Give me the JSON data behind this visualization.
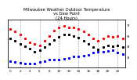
{
  "title": "Milwaukee Weather Outdoor Temperature\nvs Dew Point\n(24 Hours)",
  "bg_color": "#ffffff",
  "grid_color": "#999999",
  "ylim": [
    0,
    90
  ],
  "xlim": [
    -0.5,
    23.5
  ],
  "ytick_labels": [
    "1f",
    "3f",
    "5f",
    "7f"
  ],
  "vlines": [
    2,
    6,
    10,
    14,
    18,
    22
  ],
  "temp_x": [
    0,
    1,
    2,
    3,
    4,
    5,
    6,
    7,
    8,
    9,
    10,
    11,
    12,
    13,
    14,
    15,
    16,
    17,
    18,
    19,
    20,
    21,
    22,
    23
  ],
  "temp_y": [
    72,
    68,
    62,
    55,
    48,
    44,
    42,
    50,
    60,
    70,
    75,
    78,
    76,
    75,
    72,
    68,
    62,
    55,
    50,
    55,
    60,
    58,
    60,
    55
  ],
  "dew_x": [
    0,
    1,
    2,
    3,
    4,
    5,
    6,
    7,
    8,
    9,
    10,
    11,
    12,
    13,
    14,
    15,
    16,
    17,
    18,
    19,
    20,
    21,
    22,
    23
  ],
  "dew_y": [
    12,
    10,
    9,
    8,
    8,
    8,
    10,
    12,
    14,
    14,
    15,
    16,
    18,
    20,
    20,
    22,
    24,
    28,
    30,
    30,
    31,
    32,
    28,
    25
  ],
  "black_x": [
    0,
    1,
    2,
    3,
    4,
    5,
    6,
    7,
    8,
    9,
    10,
    11,
    12,
    13,
    14,
    15,
    16,
    17,
    18,
    19,
    20,
    21,
    22,
    23
  ],
  "black_y": [
    55,
    50,
    45,
    40,
    35,
    30,
    32,
    38,
    45,
    52,
    58,
    62,
    62,
    60,
    56,
    50,
    44,
    38,
    34,
    38,
    42,
    40,
    42,
    38
  ],
  "temp_color": "#ff0000",
  "dew_color": "#0000ff",
  "black_color": "#000000",
  "marker_size": 1.2,
  "title_fontsize": 3.8,
  "tick_fontsize": 3.0,
  "right_yticks": [
    20,
    40,
    60,
    80
  ],
  "right_ytick_labels": [
    "1f",
    "3f",
    "5f",
    "7f"
  ]
}
